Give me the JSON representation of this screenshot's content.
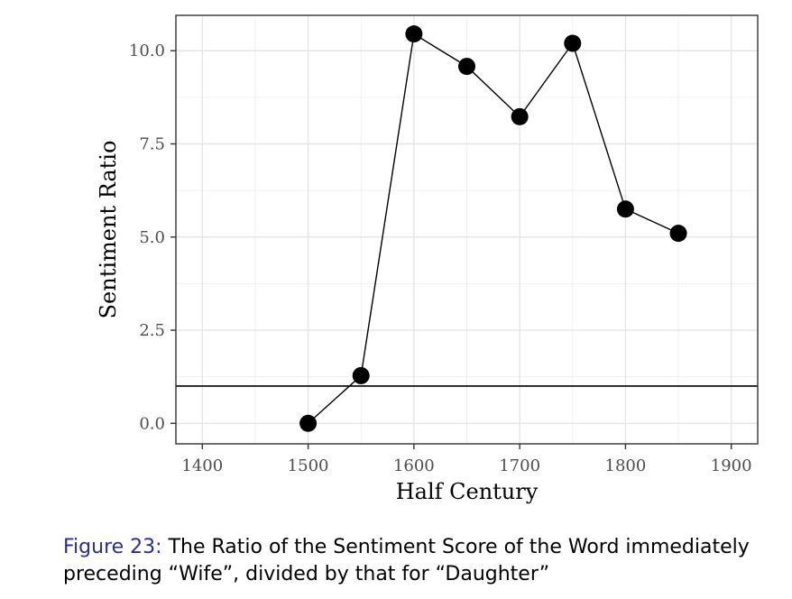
{
  "chart_data": {
    "type": "line",
    "title": "",
    "xlabel": "Half Century",
    "ylabel": "Sentiment Ratio",
    "xlim": [
      1375,
      1925
    ],
    "ylim": [
      -0.55,
      10.95
    ],
    "x_ticks": [
      1400,
      1500,
      1600,
      1700,
      1800,
      1900
    ],
    "x_tick_labels": [
      "1400",
      "1500",
      "1600",
      "1700",
      "1800",
      "1900"
    ],
    "y_ticks": [
      0,
      2.5,
      5,
      7.5,
      10
    ],
    "y_tick_labels": [
      "0.0",
      "2.5",
      "5.0",
      "7.5",
      "10.0"
    ],
    "grid": true,
    "reference_line": {
      "y": 1.0
    },
    "series": [
      {
        "x": [
          1500,
          1550,
          1600,
          1650,
          1700,
          1750,
          1800,
          1850
        ],
        "y": [
          0.0,
          1.28,
          10.45,
          9.58,
          8.23,
          10.2,
          5.75,
          5.1
        ]
      }
    ]
  },
  "caption": {
    "label": "Figure 23:",
    "text": "The Ratio of the Sentiment Score of the Word immediately preceding “Wife”, divided by that for “Daughter”"
  }
}
